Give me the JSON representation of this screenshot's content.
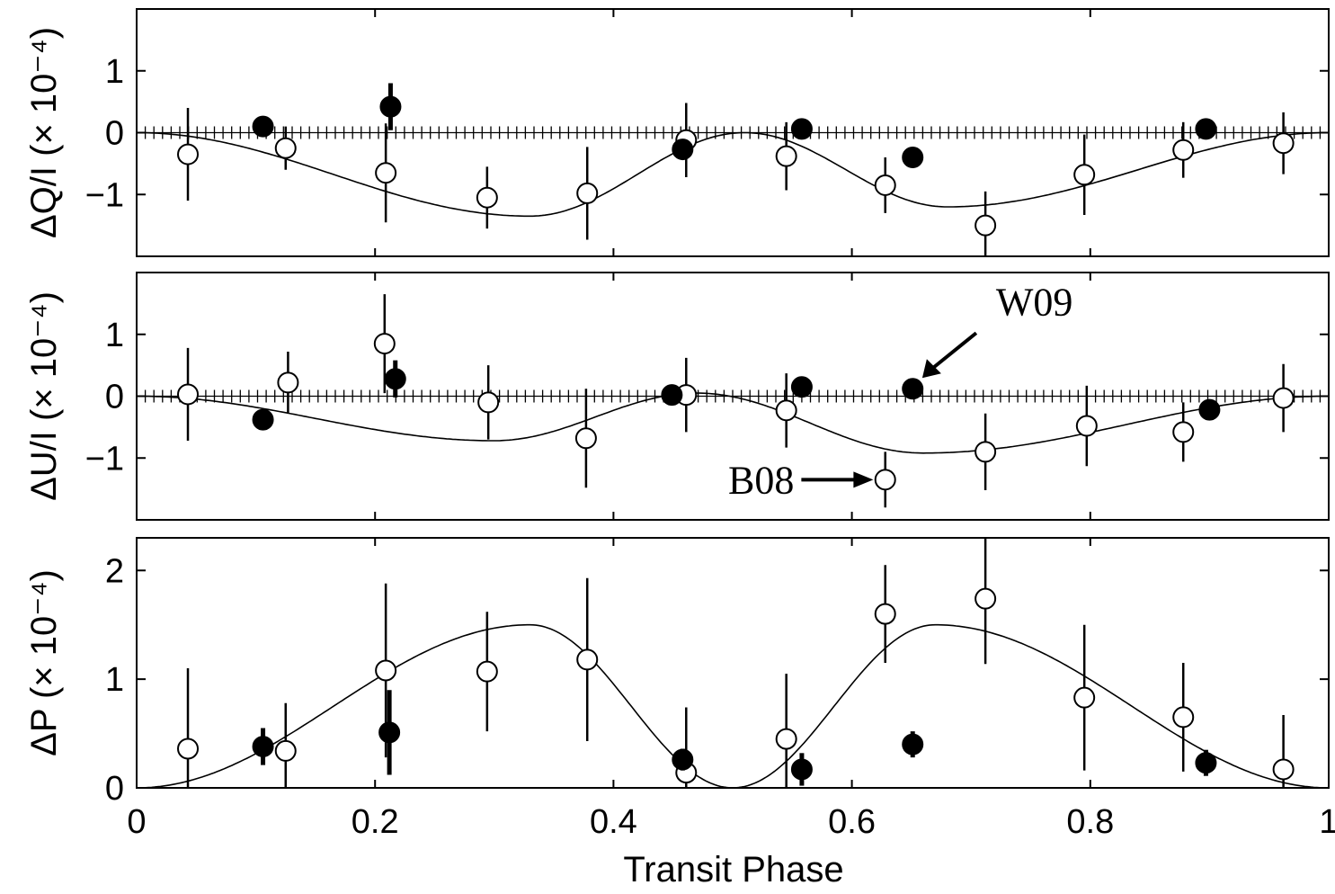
{
  "colors": {
    "background": "#ffffff",
    "ink": "#000000",
    "open_marker_fill": "#ffffff",
    "filled_marker_fill": "#000000"
  },
  "xlabel": "Transit Phase",
  "x_tick_labels": [
    "0",
    "0.2",
    "0.4",
    "0.6",
    "0.8",
    "1"
  ],
  "chart_data": [
    {
      "type": "scatter",
      "panel": "top",
      "ylabel": "ΔQ/I (× 10⁻⁴)",
      "xlim": [
        0,
        1
      ],
      "ylim": [
        -2,
        2
      ],
      "y_ticks": [
        -1,
        0,
        1
      ],
      "y_tick_labels": [
        "−1",
        "0",
        "1"
      ],
      "zero_line": "dotted",
      "model_curve": true,
      "model_extrema": [
        [
          0.33,
          -1.35
        ],
        [
          0.51,
          0.0
        ],
        [
          0.68,
          -1.2
        ]
      ],
      "series": [
        {
          "name": "B08",
          "marker": "open",
          "x": [
            0.043,
            0.125,
            0.209,
            0.294,
            0.378,
            0.461,
            0.545,
            0.628,
            0.712,
            0.795,
            0.878,
            0.962
          ],
          "y": [
            -0.35,
            -0.25,
            -0.65,
            -1.05,
            -0.98,
            -0.12,
            -0.38,
            -0.85,
            -1.5,
            -0.68,
            -0.28,
            -0.17
          ],
          "err": [
            0.75,
            0.35,
            0.8,
            0.5,
            0.75,
            0.6,
            0.55,
            0.45,
            0.55,
            0.65,
            0.45,
            0.5
          ]
        },
        {
          "name": "W09",
          "marker": "filled",
          "x": [
            0.106,
            0.213,
            0.458,
            0.558,
            0.651,
            0.897
          ],
          "y": [
            0.1,
            0.42,
            -0.27,
            0.06,
            -0.4,
            0.06
          ],
          "err": [
            0.05,
            0.38,
            0.1,
            0.05,
            0.05,
            0.05
          ]
        }
      ]
    },
    {
      "type": "scatter",
      "panel": "middle",
      "ylabel": "ΔU/I (× 10⁻⁴)",
      "xlim": [
        0,
        1
      ],
      "ylim": [
        -2,
        2
      ],
      "y_ticks": [
        -1,
        0,
        1
      ],
      "y_tick_labels": [
        "−1",
        "0",
        "1"
      ],
      "zero_line": "dotted",
      "model_curve": true,
      "model_extrema": [
        [
          0.3,
          -0.72
        ],
        [
          0.47,
          0.05
        ],
        [
          0.66,
          -0.92
        ]
      ],
      "annotations": [
        {
          "text": "W09",
          "points_to": [
            0.65,
            0.12
          ]
        },
        {
          "text": "B08",
          "points_to": [
            0.63,
            -1.35
          ]
        }
      ],
      "series": [
        {
          "name": "B08",
          "marker": "open",
          "x": [
            0.043,
            0.127,
            0.208,
            0.295,
            0.377,
            0.461,
            0.545,
            0.628,
            0.712,
            0.797,
            0.878,
            0.962
          ],
          "y": [
            0.03,
            0.22,
            0.85,
            -0.1,
            -0.68,
            0.02,
            -0.23,
            -1.35,
            -0.9,
            -0.48,
            -0.58,
            -0.03
          ],
          "err": [
            0.75,
            0.5,
            0.8,
            0.6,
            0.8,
            0.6,
            0.6,
            0.45,
            0.62,
            0.65,
            0.48,
            0.55
          ]
        },
        {
          "name": "W09",
          "marker": "filled",
          "x": [
            0.106,
            0.217,
            0.449,
            0.558,
            0.651,
            0.9
          ],
          "y": [
            -0.38,
            0.28,
            0.02,
            0.15,
            0.12,
            -0.22
          ],
          "err": [
            0.05,
            0.3,
            0.05,
            0.05,
            0.05,
            0.05
          ]
        }
      ]
    },
    {
      "type": "scatter",
      "panel": "bottom",
      "ylabel": "ΔP (× 10⁻⁴)",
      "xlim": [
        0,
        1
      ],
      "ylim": [
        0,
        2.3
      ],
      "y_ticks": [
        0,
        1,
        2
      ],
      "y_tick_labels": [
        "0",
        "1",
        "2"
      ],
      "model_curve": true,
      "model_extrema": [
        [
          0.33,
          1.5
        ],
        [
          0.5,
          0.0
        ],
        [
          0.67,
          1.5
        ]
      ],
      "series": [
        {
          "name": "B08",
          "marker": "open",
          "x": [
            0.043,
            0.125,
            0.209,
            0.294,
            0.378,
            0.461,
            0.545,
            0.628,
            0.712,
            0.795,
            0.878,
            0.962
          ],
          "y": [
            0.36,
            0.34,
            1.08,
            1.07,
            1.18,
            0.14,
            0.45,
            1.6,
            1.74,
            0.83,
            0.65,
            0.17
          ],
          "err": [
            0.74,
            0.44,
            0.8,
            0.55,
            0.75,
            0.6,
            0.6,
            0.45,
            0.6,
            0.67,
            0.5,
            0.5
          ]
        },
        {
          "name": "W09",
          "marker": "filled",
          "x": [
            0.106,
            0.212,
            0.458,
            0.558,
            0.651,
            0.897
          ],
          "y": [
            0.38,
            0.51,
            0.26,
            0.17,
            0.4,
            0.23
          ],
          "err": [
            0.17,
            0.39,
            0.1,
            0.15,
            0.12,
            0.12
          ]
        }
      ]
    }
  ]
}
